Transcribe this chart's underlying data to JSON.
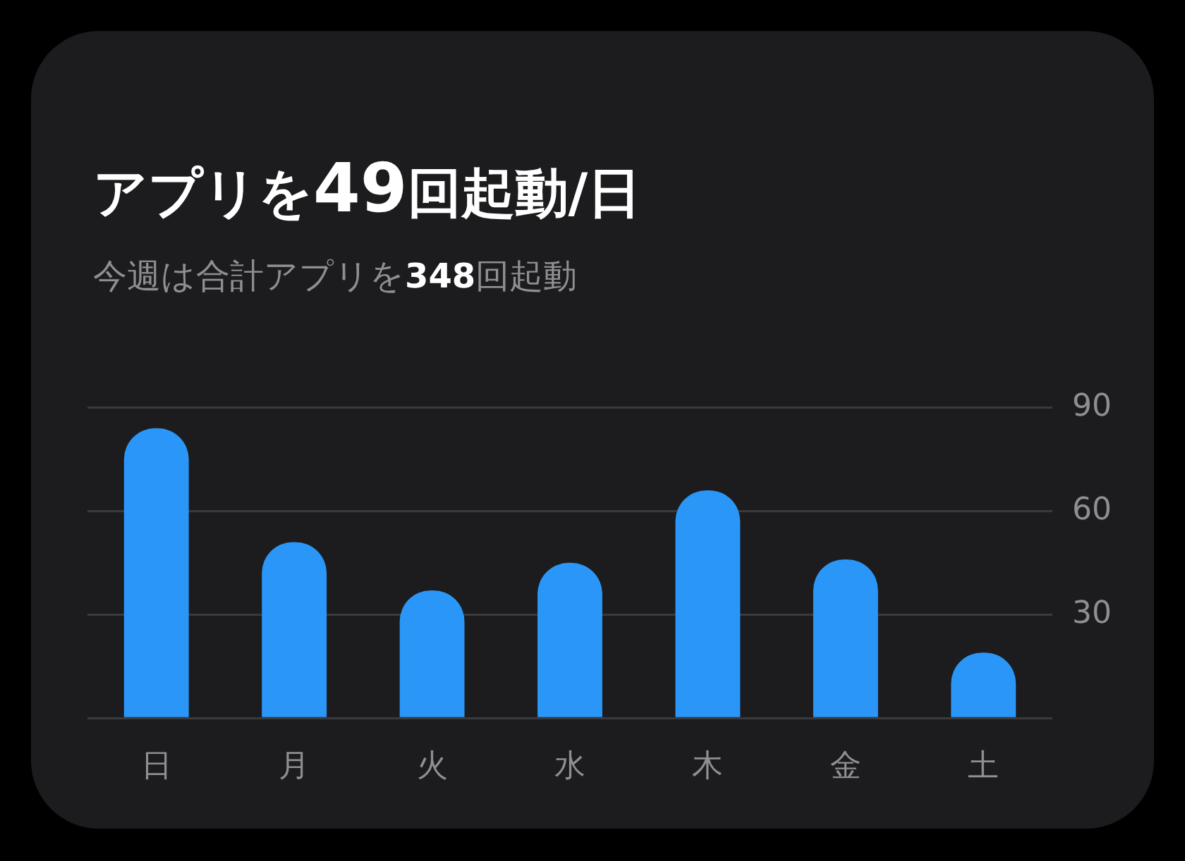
{
  "chart_data": {
    "type": "bar",
    "title": "アプリを49回起動/日",
    "subtitle": "今週は合計アプリを348回起動",
    "categories": [
      "日",
      "月",
      "火",
      "水",
      "木",
      "金",
      "土"
    ],
    "values": [
      84,
      51,
      37,
      45,
      66,
      46,
      19
    ],
    "color": "#2a97f8",
    "ylim": [
      0,
      90
    ],
    "yticks": [
      {
        "value": 0,
        "label": null
      },
      30,
      60,
      90
    ],
    "grid": "y",
    "legend": false
  }
}
